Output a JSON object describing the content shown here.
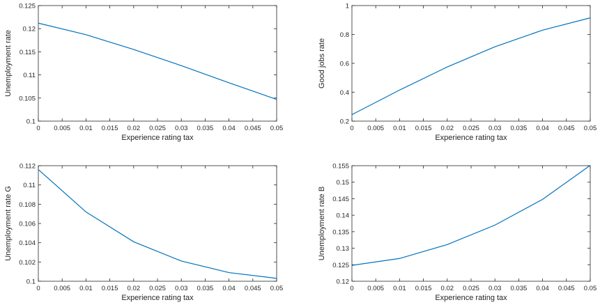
{
  "chart_data": [
    {
      "type": "line",
      "xlabel": "Experience rating tax",
      "ylabel": "Unemployment rate",
      "xlim": [
        0,
        0.05
      ],
      "ylim": [
        0.1,
        0.125
      ],
      "xticks": [
        "0",
        "0.005",
        "0.01",
        "0.015",
        "0.02",
        "0.025",
        "0.03",
        "0.035",
        "0.04",
        "0.045",
        "0.05"
      ],
      "yticks": [
        "0.1",
        "0.105",
        "0.11",
        "0.115",
        "0.12",
        "0.125"
      ],
      "grid": false,
      "color": "#0072BD",
      "x": [
        0,
        0.01,
        0.02,
        0.03,
        0.04,
        0.05
      ],
      "y": [
        0.1212,
        0.1187,
        0.1155,
        0.112,
        0.1083,
        0.1047
      ]
    },
    {
      "type": "line",
      "xlabel": "Experience rating tax",
      "ylabel": "Good jobs rate",
      "xlim": [
        0,
        0.05
      ],
      "ylim": [
        0.2,
        1
      ],
      "xticks": [
        "0",
        "0.005",
        "0.01",
        "0.015",
        "0.02",
        "0.025",
        "0.03",
        "0.035",
        "0.04",
        "0.045",
        "0.05"
      ],
      "yticks": [
        "0.2",
        "0.4",
        "0.6",
        "0.8",
        "1"
      ],
      "grid": false,
      "color": "#0072BD",
      "x": [
        0,
        0.01,
        0.02,
        0.03,
        0.04,
        0.05
      ],
      "y": [
        0.245,
        0.415,
        0.575,
        0.715,
        0.83,
        0.915
      ]
    },
    {
      "type": "line",
      "xlabel": "Experience rating tax",
      "ylabel": "Unemployment rate G",
      "xlim": [
        0,
        0.05
      ],
      "ylim": [
        0.1,
        0.112
      ],
      "xticks": [
        "0",
        "0.005",
        "0.01",
        "0.015",
        "0.02",
        "0.025",
        "0.03",
        "0.035",
        "0.04",
        "0.045",
        "0.05"
      ],
      "yticks": [
        "0.1",
        "0.102",
        "0.104",
        "0.106",
        "0.108",
        "0.11",
        "0.112"
      ],
      "grid": false,
      "color": "#0072BD",
      "x": [
        0,
        0.01,
        0.02,
        0.03,
        0.04,
        0.05
      ],
      "y": [
        0.1116,
        0.1072,
        0.1041,
        0.1021,
        0.1009,
        0.1003
      ]
    },
    {
      "type": "line",
      "xlabel": "Experience rating tax",
      "ylabel": "Unemployment rate B",
      "xlim": [
        0,
        0.05
      ],
      "ylim": [
        0.12,
        0.155
      ],
      "xticks": [
        "0",
        "0.005",
        "0.01",
        "0.015",
        "0.02",
        "0.025",
        "0.03",
        "0.035",
        "0.04",
        "0.045",
        "0.05"
      ],
      "yticks": [
        "0.12",
        "0.125",
        "0.13",
        "0.135",
        "0.14",
        "0.145",
        "0.15",
        "0.155"
      ],
      "grid": false,
      "color": "#0072BD",
      "x": [
        0,
        0.01,
        0.02,
        0.03,
        0.04,
        0.05
      ],
      "y": [
        0.1248,
        0.1269,
        0.1311,
        0.137,
        0.1448,
        0.1551
      ]
    }
  ]
}
